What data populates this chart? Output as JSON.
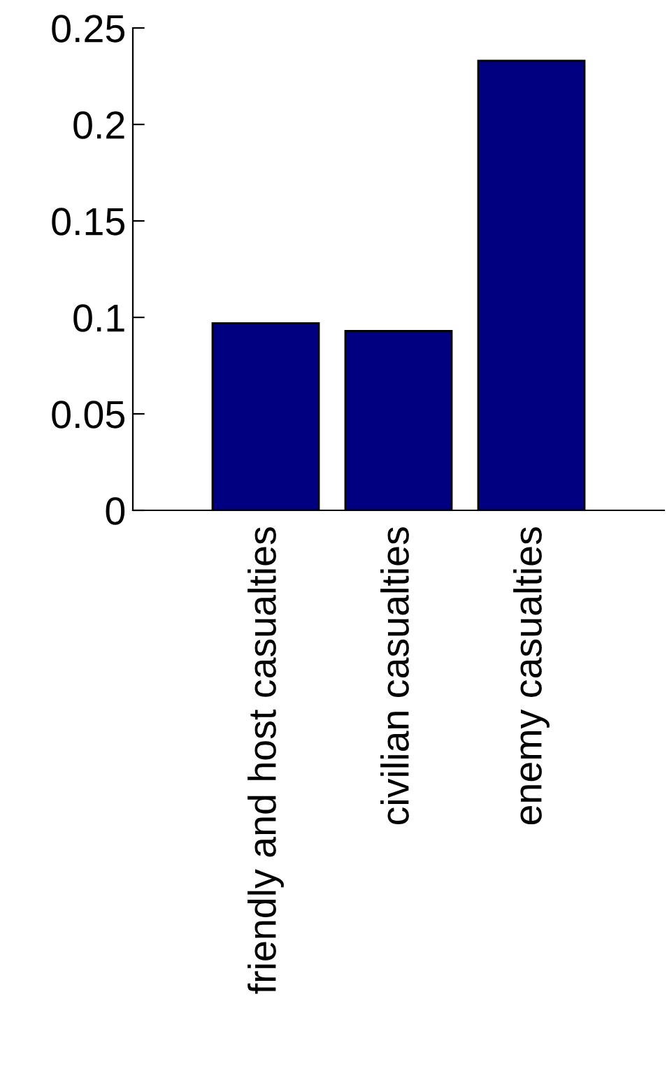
{
  "chart_data": {
    "type": "bar",
    "categories": [
      "friendly and host casualties",
      "civilian casualties",
      "enemy casualties"
    ],
    "values": [
      0.097,
      0.093,
      0.233
    ],
    "color": "#000080",
    "ylim": [
      0,
      0.25
    ],
    "yticks": [
      {
        "value": 0,
        "label": "0"
      },
      0.05,
      {
        "value": 0.1,
        "label": "0.1"
      },
      0.15,
      {
        "value": 0.2,
        "label": "0.2"
      },
      0.25
    ],
    "grid": false
  }
}
